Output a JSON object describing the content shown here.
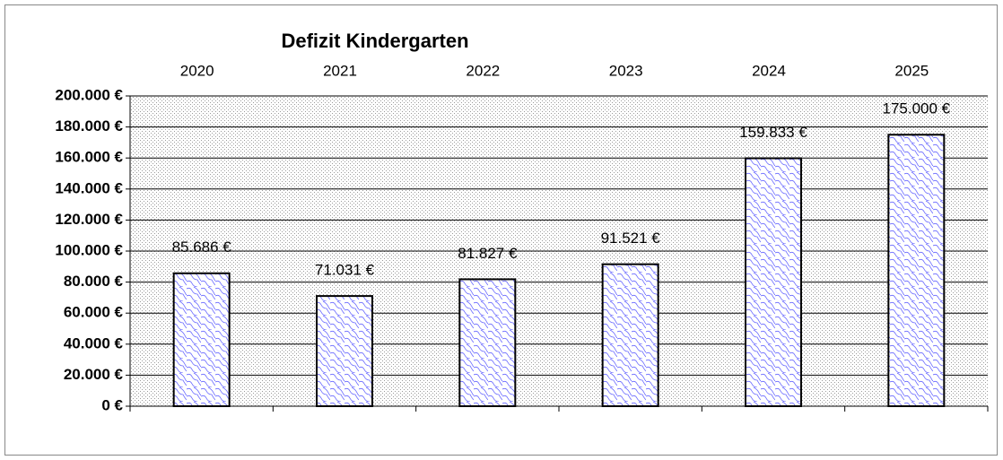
{
  "chart_data": {
    "type": "bar",
    "title": "Defizit Kindergarten",
    "categories": [
      "2020",
      "2021",
      "2022",
      "2023",
      "2024",
      "2025"
    ],
    "values": [
      85686,
      71031,
      81827,
      91521,
      159833,
      175000
    ],
    "value_labels": [
      "85.686 €",
      "71.031 €",
      "81.827 €",
      "91.521 €",
      "159.833 €",
      "175.000 €"
    ],
    "color": "#6666ff",
    "ylim": [
      0,
      200000
    ],
    "yticks": [
      {
        "value": 0,
        "label": "0 €"
      },
      {
        "value": 20000,
        "label": "20.000 €"
      },
      {
        "value": 40000,
        "label": "40.000 €"
      },
      {
        "value": 60000,
        "label": "60.000 €"
      },
      {
        "value": 80000,
        "label": "80.000 €"
      },
      {
        "value": 100000,
        "label": "100.000 €"
      },
      {
        "value": 120000,
        "label": "120.000 €"
      },
      {
        "value": 140000,
        "label": "140.000 €"
      },
      {
        "value": 160000,
        "label": "160.000 €"
      },
      {
        "value": 180000,
        "label": "180.000 €"
      },
      {
        "value": 200000,
        "label": "200.000 €"
      }
    ],
    "grid": true
  }
}
